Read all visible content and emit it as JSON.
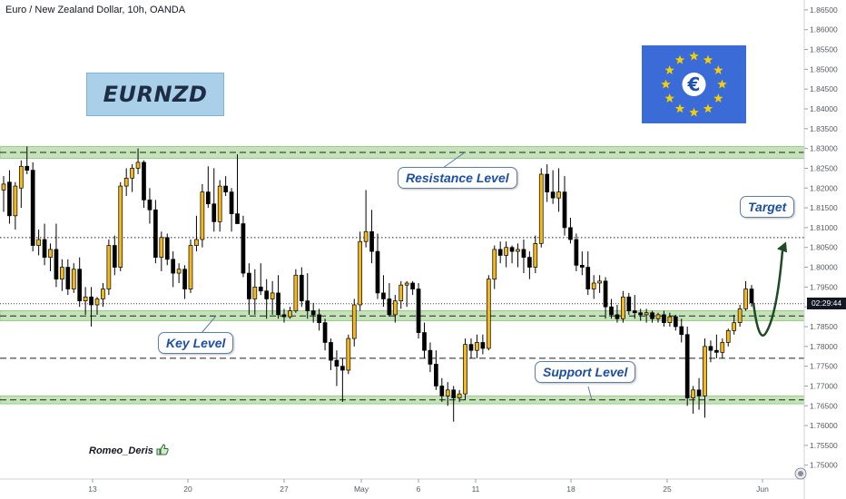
{
  "header": {
    "title": "Euro / New Zealand Dollar, 10h, OANDA"
  },
  "symbol_label": "EURNZD",
  "flag": {
    "name": "eu-flag",
    "symbol": "€",
    "stars": 12,
    "colors": {
      "field": "#3b6bd6",
      "stars": "#f4d000"
    }
  },
  "annotations": {
    "resistance": "Resistance Level",
    "key": "Key Level",
    "support": "Support Level",
    "target": "Target"
  },
  "signature": "Romeo_Deris",
  "signature_icon": "thumbs-up-icon",
  "current_price_tag": "02:29:44",
  "colors": {
    "zone_fill": "#c4e3b8",
    "zone_border": "#9cc98c",
    "candle_up": "#f4b81c",
    "candle_down": "#000000",
    "arrow": "#1e4a24",
    "callout_text": "#1d4fa5"
  },
  "chart_data": {
    "type": "candlestick",
    "title": "Euro / New Zealand Dollar, 10h, OANDA",
    "y_ticks": [
      "1.86500",
      "1.86000",
      "1.85500",
      "1.85000",
      "1.84500",
      "1.84000",
      "1.83500",
      "1.83000",
      "1.82500",
      "1.82000",
      "1.81500",
      "1.81000",
      "1.80500",
      "1.80000",
      "1.79500",
      "1.79000",
      "1.78500",
      "1.78000",
      "1.77500",
      "1.77000",
      "1.76500",
      "1.76000",
      "1.75500",
      "1.75000"
    ],
    "x_ticks": [
      "13",
      "20",
      "27",
      "May",
      "6",
      "11",
      "18",
      "25",
      "Jun"
    ],
    "ylim": [
      1.7465,
      1.8675
    ],
    "zones": [
      {
        "name": "resistance",
        "low": 1.8275,
        "high": 1.8305
      },
      {
        "name": "key",
        "low": 1.7865,
        "high": 1.789
      },
      {
        "name": "support",
        "low": 1.7655,
        "high": 1.7675
      }
    ],
    "levels": [
      {
        "name": "resistance-mid",
        "value": 1.829,
        "style": "dashed"
      },
      {
        "name": "dotted-upper",
        "value": 1.8075,
        "style": "dotted"
      },
      {
        "name": "key-mid",
        "value": 1.7877,
        "style": "dashed"
      },
      {
        "name": "dashed-mid",
        "value": 1.777,
        "style": "dashed"
      },
      {
        "name": "support-mid",
        "value": 1.7665,
        "style": "dashed"
      }
    ],
    "current_price_level": 1.7908,
    "candles": [
      {
        "o": 1.8195,
        "h": 1.823,
        "l": 1.814,
        "c": 1.821
      },
      {
        "o": 1.8215,
        "h": 1.8245,
        "l": 1.811,
        "c": 1.813
      },
      {
        "o": 1.813,
        "h": 1.8215,
        "l": 1.8095,
        "c": 1.8205
      },
      {
        "o": 1.82,
        "h": 1.827,
        "l": 1.815,
        "c": 1.8255
      },
      {
        "o": 1.8255,
        "h": 1.8305,
        "l": 1.8235,
        "c": 1.8245
      },
      {
        "o": 1.8245,
        "h": 1.8265,
        "l": 1.804,
        "c": 1.8055
      },
      {
        "o": 1.8055,
        "h": 1.8095,
        "l": 1.803,
        "c": 1.807
      },
      {
        "o": 1.807,
        "h": 1.811,
        "l": 1.8005,
        "c": 1.8025
      },
      {
        "o": 1.8025,
        "h": 1.806,
        "l": 1.799,
        "c": 1.8045
      },
      {
        "o": 1.8045,
        "h": 1.811,
        "l": 1.795,
        "c": 1.797
      },
      {
        "o": 1.797,
        "h": 1.802,
        "l": 1.794,
        "c": 1.8
      },
      {
        "o": 1.8,
        "h": 1.802,
        "l": 1.793,
        "c": 1.7945
      },
      {
        "o": 1.7945,
        "h": 1.801,
        "l": 1.7935,
        "c": 1.7995
      },
      {
        "o": 1.7995,
        "h": 1.8025,
        "l": 1.79,
        "c": 1.7915
      },
      {
        "o": 1.7915,
        "h": 1.795,
        "l": 1.788,
        "c": 1.7925
      },
      {
        "o": 1.7925,
        "h": 1.795,
        "l": 1.785,
        "c": 1.7905
      },
      {
        "o": 1.7905,
        "h": 1.7925,
        "l": 1.788,
        "c": 1.792
      },
      {
        "o": 1.792,
        "h": 1.796,
        "l": 1.79,
        "c": 1.7945
      },
      {
        "o": 1.7945,
        "h": 1.807,
        "l": 1.793,
        "c": 1.8055
      },
      {
        "o": 1.8055,
        "h": 1.808,
        "l": 1.798,
        "c": 1.8
      },
      {
        "o": 1.8,
        "h": 1.8215,
        "l": 1.799,
        "c": 1.8205
      },
      {
        "o": 1.8205,
        "h": 1.825,
        "l": 1.818,
        "c": 1.8225
      },
      {
        "o": 1.8225,
        "h": 1.826,
        "l": 1.819,
        "c": 1.825
      },
      {
        "o": 1.825,
        "h": 1.83,
        "l": 1.8235,
        "c": 1.8265
      },
      {
        "o": 1.8265,
        "h": 1.827,
        "l": 1.815,
        "c": 1.817
      },
      {
        "o": 1.817,
        "h": 1.82,
        "l": 1.811,
        "c": 1.8145
      },
      {
        "o": 1.8145,
        "h": 1.817,
        "l": 1.801,
        "c": 1.8025
      },
      {
        "o": 1.8025,
        "h": 1.809,
        "l": 1.799,
        "c": 1.8075
      },
      {
        "o": 1.8075,
        "h": 1.8085,
        "l": 1.8005,
        "c": 1.802
      },
      {
        "o": 1.802,
        "h": 1.804,
        "l": 1.795,
        "c": 1.7985
      },
      {
        "o": 1.7985,
        "h": 1.801,
        "l": 1.796,
        "c": 1.7995
      },
      {
        "o": 1.7995,
        "h": 1.8005,
        "l": 1.792,
        "c": 1.7945
      },
      {
        "o": 1.7945,
        "h": 1.807,
        "l": 1.7935,
        "c": 1.8055
      },
      {
        "o": 1.8055,
        "h": 1.813,
        "l": 1.804,
        "c": 1.807
      },
      {
        "o": 1.807,
        "h": 1.821,
        "l": 1.805,
        "c": 1.819
      },
      {
        "o": 1.819,
        "h": 1.8255,
        "l": 1.815,
        "c": 1.816
      },
      {
        "o": 1.816,
        "h": 1.825,
        "l": 1.809,
        "c": 1.8115
      },
      {
        "o": 1.8115,
        "h": 1.822,
        "l": 1.809,
        "c": 1.8205
      },
      {
        "o": 1.8205,
        "h": 1.823,
        "l": 1.818,
        "c": 1.819
      },
      {
        "o": 1.819,
        "h": 1.82,
        "l": 1.809,
        "c": 1.8135
      },
      {
        "o": 1.8135,
        "h": 1.8285,
        "l": 1.811,
        "c": 1.811
      },
      {
        "o": 1.811,
        "h": 1.813,
        "l": 1.7975,
        "c": 1.7985
      },
      {
        "o": 1.7985,
        "h": 1.801,
        "l": 1.788,
        "c": 1.792
      },
      {
        "o": 1.792,
        "h": 1.7995,
        "l": 1.788,
        "c": 1.795
      },
      {
        "o": 1.795,
        "h": 1.801,
        "l": 1.793,
        "c": 1.794
      },
      {
        "o": 1.794,
        "h": 1.797,
        "l": 1.787,
        "c": 1.792
      },
      {
        "o": 1.792,
        "h": 1.7965,
        "l": 1.788,
        "c": 1.7935
      },
      {
        "o": 1.7935,
        "h": 1.798,
        "l": 1.787,
        "c": 1.788
      },
      {
        "o": 1.788,
        "h": 1.7895,
        "l": 1.786,
        "c": 1.7875
      },
      {
        "o": 1.7875,
        "h": 1.79,
        "l": 1.787,
        "c": 1.789
      },
      {
        "o": 1.789,
        "h": 1.7995,
        "l": 1.7885,
        "c": 1.798
      },
      {
        "o": 1.798,
        "h": 1.8,
        "l": 1.79,
        "c": 1.7915
      },
      {
        "o": 1.7915,
        "h": 1.7985,
        "l": 1.787,
        "c": 1.789
      },
      {
        "o": 1.789,
        "h": 1.791,
        "l": 1.786,
        "c": 1.788
      },
      {
        "o": 1.788,
        "h": 1.7895,
        "l": 1.784,
        "c": 1.786
      },
      {
        "o": 1.786,
        "h": 1.787,
        "l": 1.779,
        "c": 1.781
      },
      {
        "o": 1.781,
        "h": 1.782,
        "l": 1.774,
        "c": 1.7765
      },
      {
        "o": 1.7765,
        "h": 1.779,
        "l": 1.77,
        "c": 1.775
      },
      {
        "o": 1.775,
        "h": 1.777,
        "l": 1.766,
        "c": 1.774
      },
      {
        "o": 1.774,
        "h": 1.783,
        "l": 1.773,
        "c": 1.782
      },
      {
        "o": 1.782,
        "h": 1.792,
        "l": 1.78,
        "c": 1.7905
      },
      {
        "o": 1.7905,
        "h": 1.809,
        "l": 1.789,
        "c": 1.8065
      },
      {
        "o": 1.8065,
        "h": 1.8195,
        "l": 1.805,
        "c": 1.809
      },
      {
        "o": 1.809,
        "h": 1.8145,
        "l": 1.801,
        "c": 1.804
      },
      {
        "o": 1.804,
        "h": 1.8085,
        "l": 1.792,
        "c": 1.7935
      },
      {
        "o": 1.7935,
        "h": 1.798,
        "l": 1.79,
        "c": 1.792
      },
      {
        "o": 1.792,
        "h": 1.796,
        "l": 1.7875,
        "c": 1.788
      },
      {
        "o": 1.788,
        "h": 1.793,
        "l": 1.786,
        "c": 1.7915
      },
      {
        "o": 1.7915,
        "h": 1.7965,
        "l": 1.7895,
        "c": 1.7955
      },
      {
        "o": 1.7955,
        "h": 1.7965,
        "l": 1.79,
        "c": 1.796
      },
      {
        "o": 1.796,
        "h": 1.7965,
        "l": 1.793,
        "c": 1.7945
      },
      {
        "o": 1.7945,
        "h": 1.796,
        "l": 1.782,
        "c": 1.7835
      },
      {
        "o": 1.7835,
        "h": 1.786,
        "l": 1.777,
        "c": 1.779
      },
      {
        "o": 1.779,
        "h": 1.781,
        "l": 1.7735,
        "c": 1.7755
      },
      {
        "o": 1.7755,
        "h": 1.779,
        "l": 1.769,
        "c": 1.77
      },
      {
        "o": 1.77,
        "h": 1.772,
        "l": 1.766,
        "c": 1.7675
      },
      {
        "o": 1.7675,
        "h": 1.771,
        "l": 1.765,
        "c": 1.769
      },
      {
        "o": 1.769,
        "h": 1.77,
        "l": 1.761,
        "c": 1.767
      },
      {
        "o": 1.767,
        "h": 1.769,
        "l": 1.766,
        "c": 1.768
      },
      {
        "o": 1.768,
        "h": 1.782,
        "l": 1.7665,
        "c": 1.7805
      },
      {
        "o": 1.7805,
        "h": 1.782,
        "l": 1.777,
        "c": 1.779
      },
      {
        "o": 1.779,
        "h": 1.783,
        "l": 1.777,
        "c": 1.781
      },
      {
        "o": 1.781,
        "h": 1.783,
        "l": 1.778,
        "c": 1.7795
      },
      {
        "o": 1.7795,
        "h": 1.798,
        "l": 1.779,
        "c": 1.797
      },
      {
        "o": 1.797,
        "h": 1.8055,
        "l": 1.7945,
        "c": 1.8045
      },
      {
        "o": 1.8045,
        "h": 1.8065,
        "l": 1.801,
        "c": 1.803
      },
      {
        "o": 1.803,
        "h": 1.8065,
        "l": 1.8,
        "c": 1.805
      },
      {
        "o": 1.805,
        "h": 1.8055,
        "l": 1.801,
        "c": 1.804
      },
      {
        "o": 1.804,
        "h": 1.806,
        "l": 1.8,
        "c": 1.8045
      },
      {
        "o": 1.8045,
        "h": 1.807,
        "l": 1.7985,
        "c": 1.8025
      },
      {
        "o": 1.8025,
        "h": 1.804,
        "l": 1.797,
        "c": 1.8
      },
      {
        "o": 1.8,
        "h": 1.808,
        "l": 1.7985,
        "c": 1.806
      },
      {
        "o": 1.806,
        "h": 1.825,
        "l": 1.805,
        "c": 1.8235
      },
      {
        "o": 1.8235,
        "h": 1.826,
        "l": 1.8165,
        "c": 1.819
      },
      {
        "o": 1.819,
        "h": 1.8245,
        "l": 1.816,
        "c": 1.8175
      },
      {
        "o": 1.8175,
        "h": 1.825,
        "l": 1.814,
        "c": 1.819
      },
      {
        "o": 1.819,
        "h": 1.823,
        "l": 1.808,
        "c": 1.81
      },
      {
        "o": 1.81,
        "h": 1.8125,
        "l": 1.806,
        "c": 1.807
      },
      {
        "o": 1.807,
        "h": 1.8085,
        "l": 1.799,
        "c": 1.8005
      },
      {
        "o": 1.8005,
        "h": 1.804,
        "l": 1.798,
        "c": 1.8
      },
      {
        "o": 1.8,
        "h": 1.804,
        "l": 1.793,
        "c": 1.7945
      },
      {
        "o": 1.7945,
        "h": 1.798,
        "l": 1.792,
        "c": 1.796
      },
      {
        "o": 1.796,
        "h": 1.798,
        "l": 1.7935,
        "c": 1.7965
      },
      {
        "o": 1.7965,
        "h": 1.7975,
        "l": 1.787,
        "c": 1.79
      },
      {
        "o": 1.79,
        "h": 1.792,
        "l": 1.787,
        "c": 1.788
      },
      {
        "o": 1.788,
        "h": 1.7905,
        "l": 1.786,
        "c": 1.787
      },
      {
        "o": 1.787,
        "h": 1.794,
        "l": 1.786,
        "c": 1.7925
      },
      {
        "o": 1.7925,
        "h": 1.7935,
        "l": 1.788,
        "c": 1.789
      },
      {
        "o": 1.789,
        "h": 1.793,
        "l": 1.787,
        "c": 1.7885
      },
      {
        "o": 1.7885,
        "h": 1.7895,
        "l": 1.7865,
        "c": 1.788
      },
      {
        "o": 1.788,
        "h": 1.7895,
        "l": 1.786,
        "c": 1.7885
      },
      {
        "o": 1.7885,
        "h": 1.789,
        "l": 1.786,
        "c": 1.787
      },
      {
        "o": 1.787,
        "h": 1.7885,
        "l": 1.786,
        "c": 1.788
      },
      {
        "o": 1.788,
        "h": 1.789,
        "l": 1.785,
        "c": 1.786
      },
      {
        "o": 1.786,
        "h": 1.7885,
        "l": 1.785,
        "c": 1.7875
      },
      {
        "o": 1.7875,
        "h": 1.788,
        "l": 1.784,
        "c": 1.785
      },
      {
        "o": 1.785,
        "h": 1.787,
        "l": 1.781,
        "c": 1.783
      },
      {
        "o": 1.783,
        "h": 1.785,
        "l": 1.765,
        "c": 1.767
      },
      {
        "o": 1.767,
        "h": 1.77,
        "l": 1.763,
        "c": 1.769
      },
      {
        "o": 1.769,
        "h": 1.772,
        "l": 1.764,
        "c": 1.7675
      },
      {
        "o": 1.7675,
        "h": 1.782,
        "l": 1.762,
        "c": 1.78
      },
      {
        "o": 1.78,
        "h": 1.7815,
        "l": 1.776,
        "c": 1.779
      },
      {
        "o": 1.779,
        "h": 1.783,
        "l": 1.777,
        "c": 1.7785
      },
      {
        "o": 1.7785,
        "h": 1.782,
        "l": 1.777,
        "c": 1.781
      },
      {
        "o": 1.781,
        "h": 1.7845,
        "l": 1.78,
        "c": 1.784
      },
      {
        "o": 1.784,
        "h": 1.788,
        "l": 1.783,
        "c": 1.786
      },
      {
        "o": 1.786,
        "h": 1.7905,
        "l": 1.785,
        "c": 1.7895
      },
      {
        "o": 1.7895,
        "h": 1.7965,
        "l": 1.789,
        "c": 1.7945
      },
      {
        "o": 1.7945,
        "h": 1.7955,
        "l": 1.79,
        "c": 1.791
      }
    ],
    "target_projection": {
      "low": 1.7835,
      "high": 1.806
    }
  }
}
